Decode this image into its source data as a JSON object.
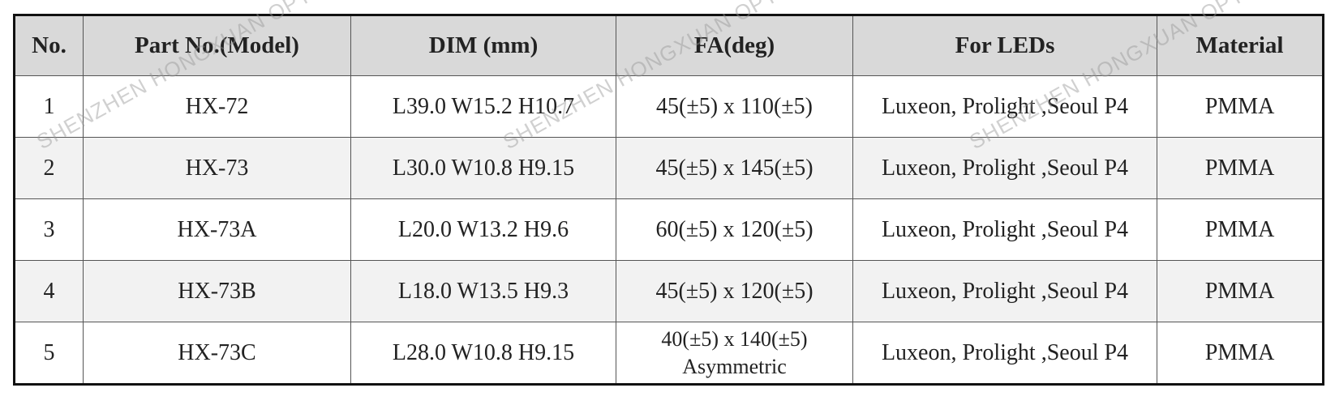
{
  "table": {
    "header": [
      "No.",
      "Part No.(Model)",
      "DIM  (mm)",
      "FA(deg)",
      "For LEDs",
      "Material"
    ],
    "rows": [
      [
        "1",
        "HX-72",
        "L39.0 W15.2   H10.7",
        "45(±5) x 110(±5)",
        "Luxeon, Prolight ,Seoul P4",
        "PMMA"
      ],
      [
        "2",
        "HX-73",
        "L30.0 W10.8   H9.15",
        "45(±5) x 145(±5)",
        "Luxeon, Prolight ,Seoul P4",
        "PMMA"
      ],
      [
        "3",
        "HX-73A",
        "L20.0 W13.2   H9.6",
        "60(±5) x 120(±5)",
        "Luxeon, Prolight ,Seoul P4",
        "PMMA"
      ],
      [
        "4",
        "HX-73B",
        "L18.0 W13.5   H9.3",
        "45(±5) x 120(±5)",
        "Luxeon, Prolight ,Seoul P4",
        "PMMA"
      ],
      [
        "5",
        "HX-73C",
        "L28.0 W10.8   H9.15",
        [
          "40(±5) x 140(±5)",
          "Asymmetric"
        ],
        "Luxeon, Prolight ,Seoul P4",
        "PMMA"
      ]
    ]
  },
  "watermark": "SHENZHEN HONGXUAN OPTO"
}
